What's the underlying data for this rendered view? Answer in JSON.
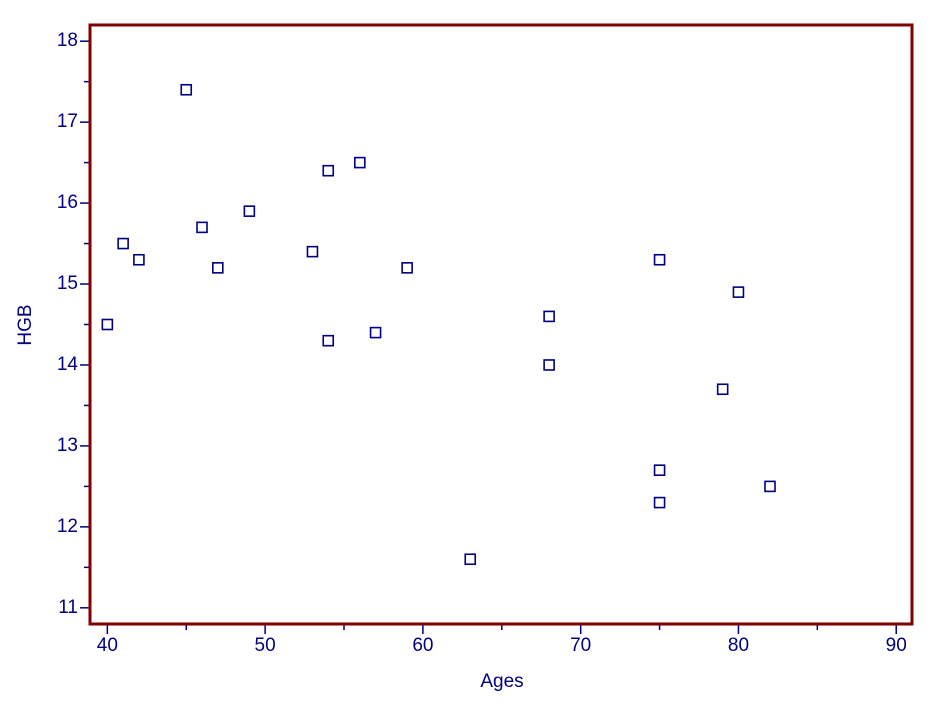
{
  "chart_data": {
    "type": "scatter",
    "x_label": "Ages",
    "y_label": "HGB",
    "series": [
      {
        "color": "#000080",
        "x": [
          45,
          56,
          54,
          49,
          46,
          41,
          53,
          42,
          47,
          59,
          40,
          54,
          57,
          68,
          68,
          75,
          80,
          79,
          75,
          75,
          82,
          63
        ],
        "values": [
          17.4,
          16.5,
          16.4,
          15.9,
          15.7,
          15.5,
          15.4,
          15.3,
          15.2,
          15.2,
          14.5,
          14.3,
          14.4,
          14.6,
          14.0,
          15.3,
          14.9,
          13.7,
          12.7,
          12.3,
          12.5,
          11.6
        ]
      }
    ],
    "xlim": [
      38.9,
      91
    ],
    "ylim": [
      10.8,
      18.2
    ],
    "xticks": [
      40,
      50,
      60,
      70,
      80,
      90
    ],
    "yticks": [
      11,
      12,
      13,
      14,
      15,
      16,
      17,
      18
    ],
    "xticks_minor": [
      45,
      55,
      65,
      75,
      85
    ],
    "yticks_minor": [
      11.5,
      12.5,
      13.5,
      14.5,
      15.5,
      16.5,
      17.5
    ],
    "frame_color": "#800000",
    "text_color": "#000080"
  }
}
